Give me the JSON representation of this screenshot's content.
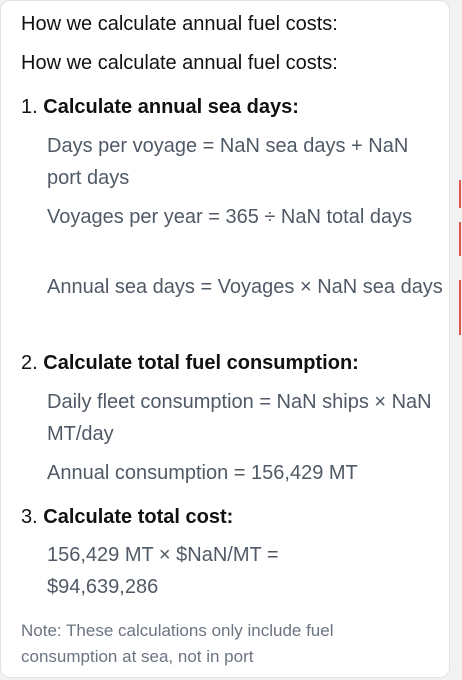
{
  "tooltip": {
    "title": "How we calculate annual fuel costs:",
    "heading": "How we calculate annual fuel costs:",
    "steps": [
      {
        "number": "1.",
        "title": "Calculate annual sea days:",
        "lines": [
          "Days per voyage = NaN sea days + NaN port days",
          "Voyages per year = 365 ÷ NaN total days",
          "Annual sea days = Voyages × NaN sea days"
        ]
      },
      {
        "number": "2.",
        "title": "Calculate total fuel consumption:",
        "lines": [
          "Daily fleet consumption = NaN ships × NaN MT/day",
          "Annual consumption = 156,429 MT"
        ]
      },
      {
        "number": "3.",
        "title": "Calculate total cost:",
        "lines": [
          "156,429 MT × $NaN/MT = $94,639,286"
        ]
      }
    ],
    "note": "Note: These calculations only include fuel consumption at sea, not in port"
  },
  "colors": {
    "heading": "#111111",
    "body_text": "#505a66",
    "note_text": "#6b7480",
    "edge_accent": "#e0584c"
  }
}
